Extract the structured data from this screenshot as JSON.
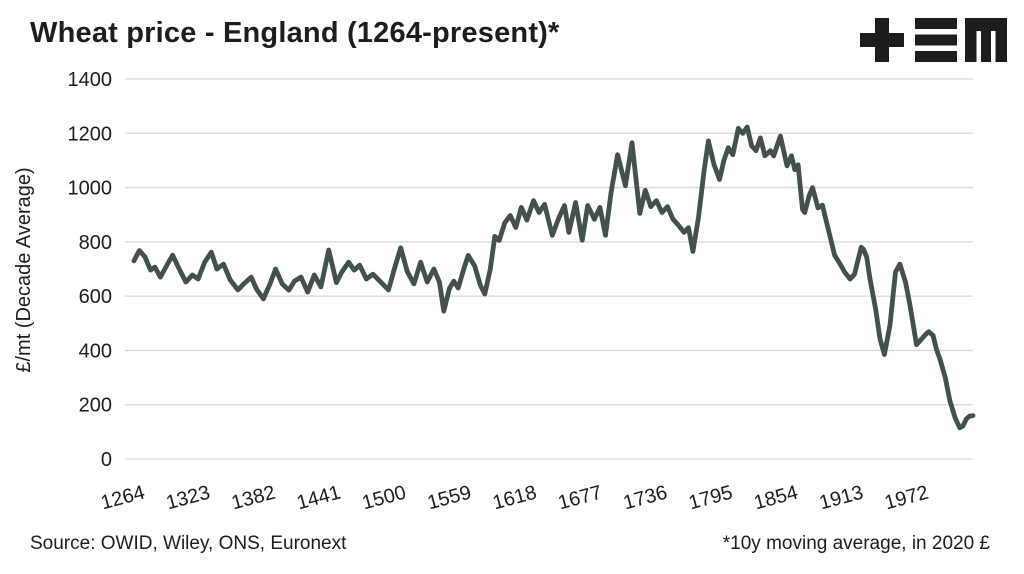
{
  "page": {
    "background": "#ffffff"
  },
  "header": {
    "title": "Wheat price - England (1264-present)*",
    "logo": {
      "name": "tem-logo",
      "color": "#1d1d1b",
      "glyphs": [
        "plus-icon",
        "triple-bar-icon",
        "m-icon"
      ]
    }
  },
  "footer": {
    "source": "Source: OWID, Wiley, ONS, Euronext",
    "note": "*10y moving average, in 2020 £"
  },
  "chart_data": {
    "type": "line",
    "title": "Wheat price - England (1264-present)*",
    "xlabel": "",
    "ylabel": "£/mt (Decade Average)",
    "ylim": [
      0,
      1400
    ],
    "xlim": [
      1264,
      2022
    ],
    "y_ticks": [
      0,
      200,
      400,
      600,
      800,
      1000,
      1200,
      1400
    ],
    "x_ticks": [
      1264,
      1323,
      1382,
      1441,
      1500,
      1559,
      1618,
      1677,
      1736,
      1795,
      1854,
      1913,
      1972
    ],
    "grid": "horizontal",
    "legend_position": "none",
    "line_color": "#42514d",
    "grid_color": "#d9d9d9",
    "text_color": "#1d1d1b",
    "series": [
      {
        "name": "Wheat price, 10y moving average, 2020 £/mt",
        "x": [
          1264,
          1269,
          1274,
          1279,
          1283,
          1288,
          1294,
          1299,
          1305,
          1311,
          1317,
          1322,
          1328,
          1334,
          1339,
          1345,
          1351,
          1358,
          1364,
          1370,
          1375,
          1381,
          1387,
          1392,
          1398,
          1404,
          1409,
          1415,
          1421,
          1427,
          1433,
          1440,
          1447,
          1452,
          1458,
          1463,
          1468,
          1474,
          1480,
          1487,
          1494,
          1500,
          1505,
          1511,
          1517,
          1523,
          1529,
          1535,
          1540,
          1544,
          1549,
          1553,
          1557,
          1562,
          1566,
          1572,
          1577,
          1581,
          1586,
          1590,
          1594,
          1599,
          1604,
          1609,
          1614,
          1619,
          1625,
          1630,
          1635,
          1642,
          1648,
          1653,
          1657,
          1663,
          1669,
          1674,
          1680,
          1685,
          1690,
          1695,
          1701,
          1708,
          1714,
          1721,
          1726,
          1731,
          1736,
          1741,
          1746,
          1751,
          1756,
          1761,
          1765,
          1769,
          1774,
          1779,
          1783,
          1788,
          1793,
          1797,
          1801,
          1805,
          1810,
          1814,
          1818,
          1822,
          1826,
          1830,
          1834,
          1839,
          1842,
          1848,
          1854,
          1858,
          1861,
          1864,
          1868,
          1870,
          1874,
          1877,
          1882,
          1886,
          1893,
          1897,
          1902,
          1906,
          1911,
          1915,
          1921,
          1923,
          1926,
          1929,
          1934,
          1938,
          1942,
          1947,
          1952,
          1956,
          1961,
          1965,
          1971,
          1975,
          1979,
          1982,
          1986,
          1989,
          1992,
          1997,
          2001,
          2006,
          2010,
          2013,
          2016,
          2019,
          2022
        ],
        "y": [
          730,
          768,
          745,
          696,
          707,
          670,
          715,
          751,
          700,
          652,
          678,
          663,
          725,
          762,
          700,
          718,
          660,
          623,
          648,
          670,
          625,
          590,
          645,
          700,
          645,
          622,
          655,
          670,
          615,
          678,
          634,
          770,
          650,
          690,
          725,
          696,
          714,
          663,
          681,
          652,
          623,
          710,
          778,
          690,
          645,
          725,
          652,
          700,
          652,
          545,
          628,
          655,
          630,
          700,
          750,
          710,
          640,
          608,
          700,
          820,
          805,
          870,
          897,
          853,
          927,
          880,
          952,
          908,
          938,
          824,
          890,
          934,
          835,
          945,
          806,
          934,
          883,
          927,
          824,
          980,
          1121,
          1007,
          1165,
          905,
          990,
          930,
          952,
          908,
          930,
          883,
          861,
          835,
          852,
          765,
          890,
          1060,
          1172,
          1085,
          1030,
          1100,
          1147,
          1121,
          1218,
          1200,
          1223,
          1154,
          1136,
          1183,
          1117,
          1136,
          1117,
          1190,
          1080,
          1117,
          1066,
          1084,
          920,
          908,
          970,
          1000,
          925,
          935,
          817,
          751,
          718,
          689,
          663,
          681,
          780,
          773,
          744,
          663,
          553,
          443,
          385,
          494,
          689,
          718,
          652,
          568,
          421,
          440,
          458,
          469,
          455,
          403,
          370,
          300,
          215,
          150,
          115,
          122,
          148,
          158,
          160
        ]
      }
    ]
  }
}
